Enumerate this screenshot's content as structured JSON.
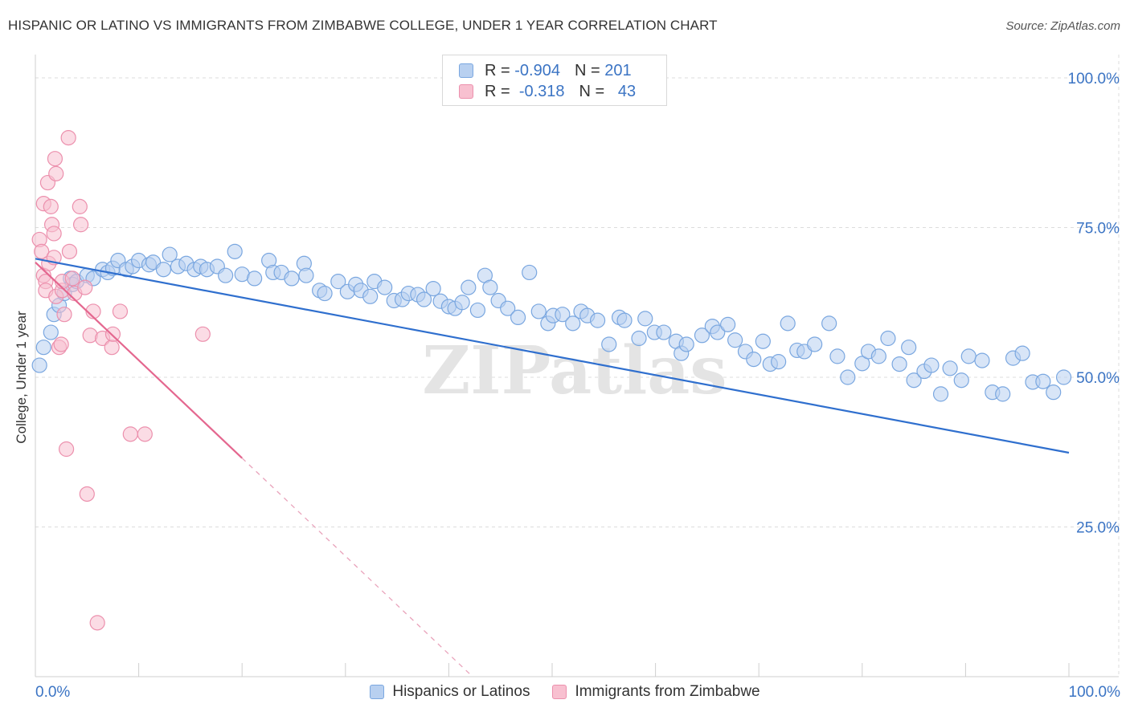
{
  "title": "HISPANIC OR LATINO VS IMMIGRANTS FROM ZIMBABWE COLLEGE, UNDER 1 YEAR CORRELATION CHART",
  "source": "Source: ZipAtlas.com",
  "watermark": "ZIPatlas",
  "legend_top": {
    "rows": [
      {
        "r_label": "R =",
        "r_value": "-0.904",
        "n_label": "N =",
        "n_value": "201",
        "fill": "#b8d0f0",
        "stroke": "#7aa7e0"
      },
      {
        "r_label": "R =",
        "r_value": "-0.318",
        "n_label": "N =",
        "n_value": "43",
        "fill": "#f8c0d0",
        "stroke": "#ec90ad"
      }
    ]
  },
  "chart_data": {
    "type": "scatter",
    "title": "HISPANIC OR LATINO VS IMMIGRANTS FROM ZIMBABWE COLLEGE, UNDER 1 YEAR CORRELATION CHART",
    "xlabel": "",
    "ylabel": "College, Under 1 year",
    "xlim": [
      0,
      100
    ],
    "ylim": [
      0,
      100
    ],
    "x_tick_labels": [
      "0.0%",
      "100.0%"
    ],
    "y_ticks": [
      25,
      50,
      75,
      100
    ],
    "y_tick_labels": [
      "25.0%",
      "50.0%",
      "75.0%",
      "100.0%"
    ],
    "grid": true,
    "legend_position": "bottom",
    "series": [
      {
        "name": "Hispanics or Latinos",
        "color": "#7aa7e0",
        "fill": "#b8d0f0",
        "trend": {
          "x": [
            0,
            100
          ],
          "y": [
            69.8,
            37.4
          ]
        },
        "points": [
          [
            0.4,
            52
          ],
          [
            0.8,
            55
          ],
          [
            1.5,
            57.5
          ],
          [
            1.8,
            60.5
          ],
          [
            2.3,
            62
          ],
          [
            2.8,
            64
          ],
          [
            3.4,
            66.5
          ],
          [
            3.6,
            65.5
          ],
          [
            4,
            66
          ],
          [
            5,
            67
          ],
          [
            5.6,
            66.5
          ],
          [
            6.5,
            68
          ],
          [
            7,
            67.5
          ],
          [
            7.5,
            68.2
          ],
          [
            8,
            69.5
          ],
          [
            8.8,
            68
          ],
          [
            9.4,
            68.5
          ],
          [
            10,
            69.5
          ],
          [
            11,
            68.8
          ],
          [
            11.4,
            69.2
          ],
          [
            12.4,
            68
          ],
          [
            13,
            70.5
          ],
          [
            13.8,
            68.5
          ],
          [
            14.6,
            69
          ],
          [
            15.4,
            68
          ],
          [
            16,
            68.5
          ],
          [
            16.6,
            68
          ],
          [
            17.6,
            68.5
          ],
          [
            18.4,
            67
          ],
          [
            19.3,
            71
          ],
          [
            20,
            67.2
          ],
          [
            21.2,
            66.5
          ],
          [
            22.6,
            69.5
          ],
          [
            23,
            67.5
          ],
          [
            23.8,
            67.5
          ],
          [
            24.8,
            66.5
          ],
          [
            26,
            69
          ],
          [
            26.2,
            67
          ],
          [
            27.5,
            64.5
          ],
          [
            28,
            64
          ],
          [
            29.3,
            66
          ],
          [
            30.2,
            64.3
          ],
          [
            31,
            65.5
          ],
          [
            31.5,
            64.5
          ],
          [
            32.4,
            63.5
          ],
          [
            32.8,
            66
          ],
          [
            33.8,
            65
          ],
          [
            34.7,
            62.8
          ],
          [
            35.5,
            63
          ],
          [
            36.1,
            64
          ],
          [
            37,
            63.8
          ],
          [
            37.6,
            63
          ],
          [
            38.5,
            64.8
          ],
          [
            39.2,
            62.7
          ],
          [
            40,
            61.8
          ],
          [
            40.6,
            61.5
          ],
          [
            41.3,
            62.5
          ],
          [
            41.9,
            65
          ],
          [
            42.8,
            61.2
          ],
          [
            43.5,
            67
          ],
          [
            44,
            65
          ],
          [
            44.8,
            62.8
          ],
          [
            45.7,
            61.5
          ],
          [
            46.7,
            60
          ],
          [
            47.8,
            67.5
          ],
          [
            48.7,
            61
          ],
          [
            49.6,
            59
          ],
          [
            50.1,
            60.3
          ],
          [
            51,
            60.5
          ],
          [
            52,
            59
          ],
          [
            52.8,
            61
          ],
          [
            53.4,
            60.3
          ],
          [
            54.4,
            59.5
          ],
          [
            55.5,
            55.5
          ],
          [
            56.5,
            60
          ],
          [
            57,
            59.5
          ],
          [
            58.4,
            56.5
          ],
          [
            59,
            59.8
          ],
          [
            59.9,
            57.5
          ],
          [
            60.8,
            57.5
          ],
          [
            62,
            56
          ],
          [
            62.5,
            54
          ],
          [
            63,
            55.5
          ],
          [
            64.5,
            57
          ],
          [
            65.5,
            58.5
          ],
          [
            66,
            57.5
          ],
          [
            67,
            58.8
          ],
          [
            67.7,
            56.2
          ],
          [
            68.7,
            54.3
          ],
          [
            69.5,
            53
          ],
          [
            70.4,
            56
          ],
          [
            71.1,
            52.2
          ],
          [
            71.9,
            52.6
          ],
          [
            72.8,
            59
          ],
          [
            73.7,
            54.5
          ],
          [
            74.4,
            54.3
          ],
          [
            75.4,
            55.5
          ],
          [
            76.8,
            59
          ],
          [
            77.6,
            53.5
          ],
          [
            78.6,
            50
          ],
          [
            80,
            52.3
          ],
          [
            80.6,
            54.3
          ],
          [
            81.6,
            53.5
          ],
          [
            82.5,
            56.5
          ],
          [
            83.6,
            52.2
          ],
          [
            84.5,
            55
          ],
          [
            85,
            49.5
          ],
          [
            86,
            51
          ],
          [
            86.7,
            52
          ],
          [
            87.6,
            47.2
          ],
          [
            88.5,
            51.5
          ],
          [
            89.6,
            49.5
          ],
          [
            90.3,
            53.5
          ],
          [
            91.6,
            52.8
          ],
          [
            92.6,
            47.5
          ],
          [
            93.6,
            47.2
          ],
          [
            94.6,
            53.2
          ],
          [
            95.5,
            54
          ],
          [
            96.5,
            49.2
          ],
          [
            97.5,
            49.3
          ],
          [
            98.5,
            47.5
          ],
          [
            99.5,
            50
          ]
        ]
      },
      {
        "name": "Immigrants from Zimbabwe",
        "color": "#ec90ad",
        "fill": "#f8c0d0",
        "trend": {
          "x": [
            0,
            20
          ],
          "y": [
            69.2,
            36.5
          ]
        },
        "trend_extension": {
          "x": [
            20,
            42
          ],
          "y": [
            36.5,
            0.5
          ]
        },
        "points": [
          [
            0.4,
            73
          ],
          [
            0.6,
            71
          ],
          [
            0.8,
            79
          ],
          [
            0.8,
            67
          ],
          [
            1,
            66
          ],
          [
            1,
            64.5
          ],
          [
            1.2,
            82.5
          ],
          [
            1.3,
            69
          ],
          [
            1.5,
            78.5
          ],
          [
            1.6,
            75.5
          ],
          [
            1.8,
            74
          ],
          [
            1.8,
            70
          ],
          [
            1.9,
            86.5
          ],
          [
            2,
            84
          ],
          [
            2,
            63.5
          ],
          [
            2.3,
            55
          ],
          [
            2.5,
            55.5
          ],
          [
            2.6,
            64.5
          ],
          [
            2.6,
            66
          ],
          [
            2.8,
            60.5
          ],
          [
            3,
            38
          ],
          [
            3.2,
            90
          ],
          [
            3.3,
            71
          ],
          [
            3.6,
            66.5
          ],
          [
            3.8,
            64
          ],
          [
            4.3,
            78.5
          ],
          [
            4.4,
            75.5
          ],
          [
            4.8,
            65
          ],
          [
            5,
            30.5
          ],
          [
            5.3,
            57
          ],
          [
            5.6,
            61
          ],
          [
            6,
            9
          ],
          [
            6.5,
            56.5
          ],
          [
            7.4,
            55
          ],
          [
            7.5,
            57.2
          ],
          [
            8.2,
            61
          ],
          [
            9.2,
            40.5
          ],
          [
            10.6,
            40.5
          ],
          [
            16.2,
            57.2
          ]
        ]
      }
    ]
  },
  "bottom_legend": [
    {
      "label": "Hispanics or Latinos",
      "fill": "#b8d0f0",
      "stroke": "#7aa7e0"
    },
    {
      "label": "Immigrants from Zimbabwe",
      "fill": "#f8c0d0",
      "stroke": "#ec90ad"
    }
  ]
}
